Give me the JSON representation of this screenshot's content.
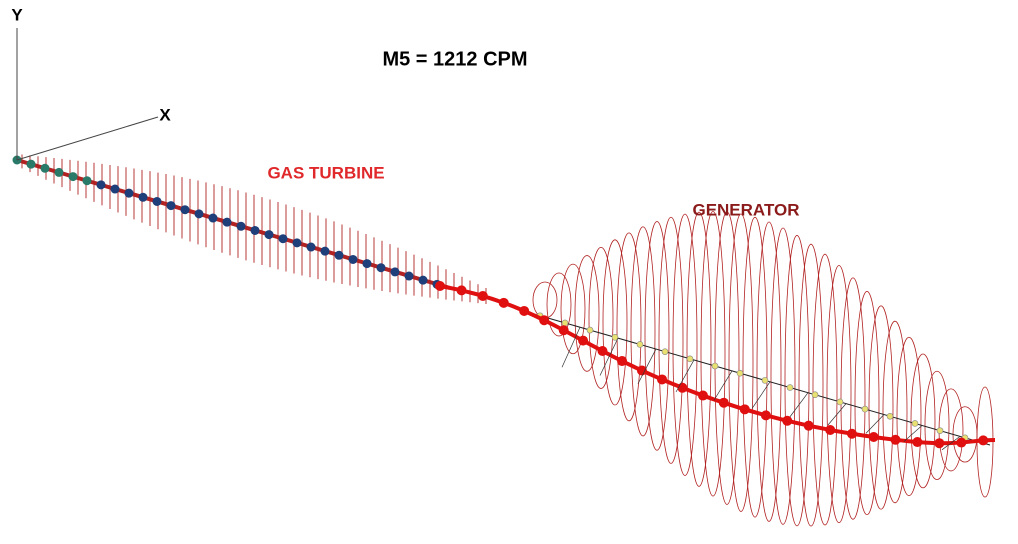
{
  "axes": {
    "y_label": "Y",
    "x_label": "X"
  },
  "title": "M5 = 1212 CPM",
  "labels": {
    "gas_turbine": "GAS TURBINE",
    "generator": "GENERATOR"
  }
}
